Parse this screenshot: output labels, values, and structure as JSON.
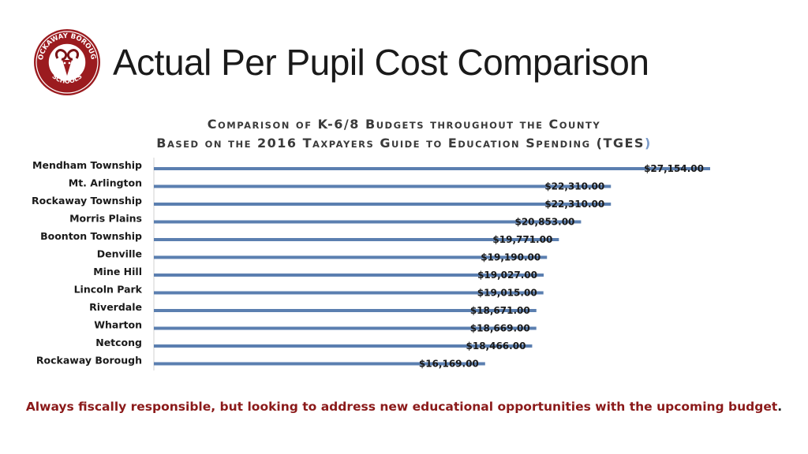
{
  "page": {
    "title": "Actual Per Pupil Cost Comparison",
    "footer": "Always fiscally responsible, but looking to address new educational opportunities with the upcoming budget",
    "footer_end": "."
  },
  "logo": {
    "top_text": "ROCKAWAY BOROUGH",
    "bottom_text": "SCHOOLS",
    "colors": {
      "ring": "#9b1b1f",
      "inner": "#ffffff"
    }
  },
  "chart_data": {
    "type": "bar",
    "orientation": "horizontal",
    "title_line1": "Comparison of K-6/8 Budgets throughout the County",
    "title_line2": "Based on the 2016 Taxpayers Guide to Education Spending (TGES",
    "title_line2_end": ")",
    "categories": [
      "Mendham Township",
      "Mt. Arlington",
      "Rockaway Township",
      "Morris Plains",
      "Boonton Township",
      "Denville",
      "Mine Hill",
      "Lincoln Park",
      "Riverdale",
      "Wharton",
      "Netcong",
      "Rockaway Borough"
    ],
    "values": [
      27154,
      22310,
      22310,
      20853,
      19771,
      19190,
      19027,
      19015,
      18671,
      18669,
      18466,
      16169
    ],
    "data_labels": [
      "$27,154.00",
      "$22,310.00",
      "$22,310.00",
      "$20,853.00",
      "$19,771.00",
      "$19,190.00",
      "$19,027.00",
      "$19,015.00",
      "$18,671.00",
      "$18,669.00",
      "$18,466.00",
      "$16,169.00"
    ],
    "xlim": [
      0,
      28000
    ],
    "bar_color": "#5b7fb0",
    "legend": "none",
    "grid": false
  }
}
